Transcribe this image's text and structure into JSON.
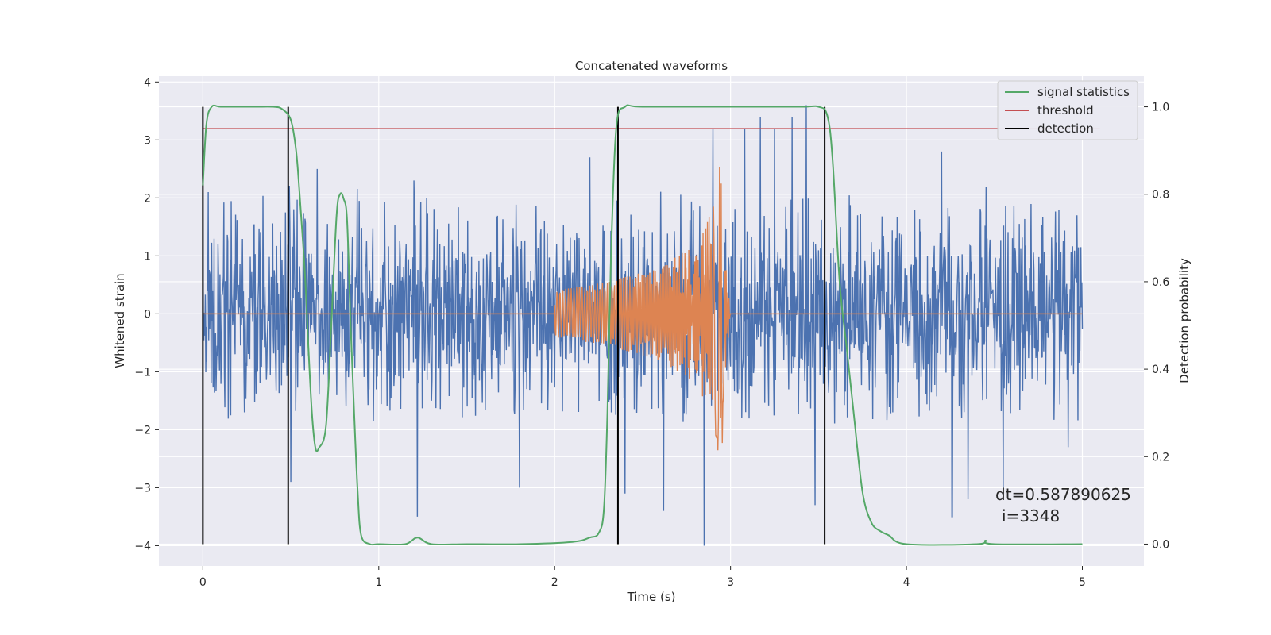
{
  "chart_data": {
    "type": "line",
    "title": "Concatenated waveforms",
    "xlabel": "Time (s)",
    "ylabel": "Whitened strain",
    "y2label": "Detection probability",
    "xlim": [
      -0.25,
      5.35
    ],
    "ylim": [
      -4.35,
      4.1
    ],
    "y2lim": [
      -0.05,
      1.07
    ],
    "xticks": [
      0,
      1,
      2,
      3,
      4,
      5
    ],
    "yticks": [
      -4,
      -3,
      -2,
      -1,
      0,
      1,
      2,
      3,
      4
    ],
    "y2ticks": [
      0.0,
      0.2,
      0.4,
      0.6,
      0.8,
      1.0
    ],
    "grid": true,
    "legend_position": "top-right",
    "annotation": {
      "line1": "dt=0.587890625",
      "line2": "i=3348"
    },
    "series": [
      {
        "name": "",
        "kind": "noise",
        "color": "#4c72b0",
        "axis": "left",
        "x_range": [
          0,
          5
        ],
        "typical_envelope": [
          -1.9,
          2.2
        ],
        "notable_peaks": [
          [
            0.03,
            2.1
          ],
          [
            0.49,
            2.2
          ],
          [
            0.5,
            -2.9
          ],
          [
            0.65,
            2.5
          ],
          [
            1.2,
            2.3
          ],
          [
            1.22,
            -3.5
          ],
          [
            1.8,
            -3.0
          ],
          [
            2.2,
            2.7
          ],
          [
            2.4,
            -3.1
          ],
          [
            2.62,
            -3.4
          ],
          [
            2.85,
            -4.0
          ],
          [
            2.9,
            3.2
          ],
          [
            3.08,
            3.2
          ],
          [
            3.17,
            3.4
          ],
          [
            3.25,
            3.2
          ],
          [
            3.35,
            3.4
          ],
          [
            3.43,
            3.6
          ],
          [
            3.48,
            -3.3
          ],
          [
            4.2,
            2.8
          ],
          [
            4.26,
            -3.5
          ],
          [
            4.35,
            -3.2
          ],
          [
            4.55,
            -3.1
          ],
          [
            4.92,
            -2.3
          ],
          [
            4.97,
            1.7
          ]
        ]
      },
      {
        "name": "",
        "kind": "chirp",
        "color": "#dd8452",
        "axis": "left",
        "x_range": [
          0,
          5
        ],
        "chirp_start": 2.0,
        "chirp_peak_time": 2.95,
        "amplitude_points": [
          [
            2.0,
            0.4
          ],
          [
            2.3,
            0.55
          ],
          [
            2.6,
            0.8
          ],
          [
            2.8,
            1.2
          ],
          [
            2.9,
            1.8
          ],
          [
            2.95,
            2.8
          ],
          [
            2.97,
            1.0
          ],
          [
            3.0,
            0.0
          ]
        ]
      },
      {
        "name": "signal statistics",
        "color": "#55a868",
        "axis": "right",
        "x": [
          0.0,
          0.02,
          0.05,
          0.1,
          0.2,
          0.3,
          0.4,
          0.45,
          0.5,
          0.53,
          0.55,
          0.58,
          0.6,
          0.62,
          0.64,
          0.66,
          0.7,
          0.73,
          0.76,
          0.78,
          0.8,
          0.82,
          0.84,
          0.86,
          0.88,
          0.9,
          0.95,
          1.0,
          1.15,
          1.22,
          1.3,
          1.5,
          1.8,
          2.1,
          2.2,
          2.25,
          2.28,
          2.3,
          2.32,
          2.35,
          2.4,
          2.5,
          3.0,
          3.4,
          3.5,
          3.55,
          3.58,
          3.62,
          3.66,
          3.7,
          3.75,
          3.8,
          3.85,
          3.9,
          4.0,
          4.4,
          4.45,
          4.5,
          5.0
        ],
        "values": [
          0.82,
          0.96,
          1.0,
          1.0,
          1.0,
          1.0,
          1.0,
          0.995,
          0.97,
          0.9,
          0.8,
          0.62,
          0.45,
          0.3,
          0.22,
          0.22,
          0.27,
          0.5,
          0.75,
          0.8,
          0.79,
          0.74,
          0.5,
          0.3,
          0.12,
          0.02,
          0.0,
          0.0,
          0.0,
          0.015,
          0.0,
          0.0,
          0.0,
          0.005,
          0.015,
          0.025,
          0.08,
          0.3,
          0.65,
          0.95,
          1.0,
          1.0,
          1.0,
          1.0,
          1.0,
          0.98,
          0.88,
          0.6,
          0.45,
          0.3,
          0.12,
          0.05,
          0.03,
          0.02,
          0.0,
          0.0,
          0.008,
          0.0,
          0.0
        ]
      },
      {
        "name": "threshold",
        "color": "#c44e52",
        "axis": "right",
        "x": [
          0,
          5.1
        ],
        "values": [
          0.95,
          0.95
        ]
      },
      {
        "name": "detection",
        "color": "#000000",
        "axis": "right",
        "kind": "vlines",
        "x": [
          0.0,
          0.485,
          2.36,
          3.535
        ],
        "ymin": 0.0,
        "ymax": 1.0
      }
    ]
  }
}
